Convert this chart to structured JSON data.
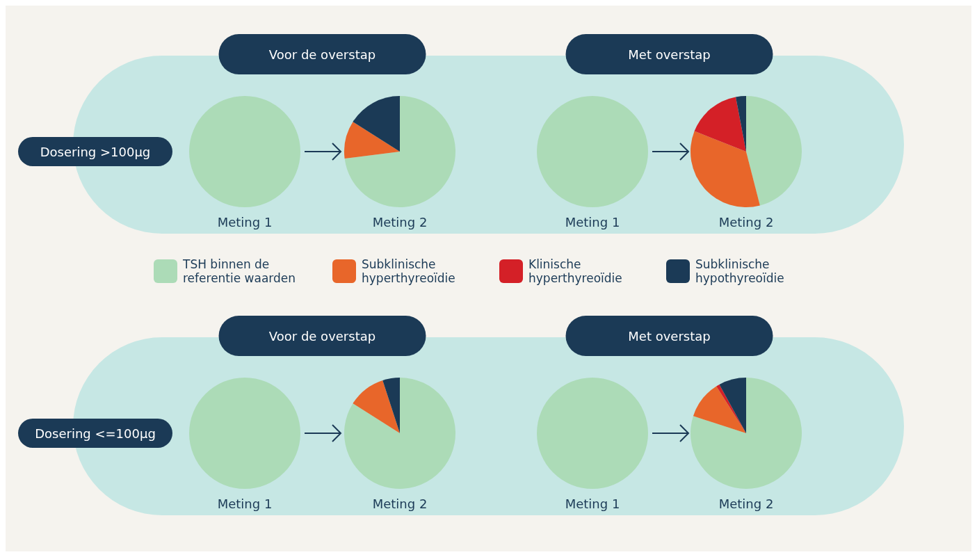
{
  "chart_data": [
    {
      "type": "pie",
      "title": "Meting 1",
      "categories": [
        null
      ],
      "values": [
        100
      ],
      "colors": [
        "#acdbb7"
      ],
      "annotations": [
        "Dosering >100μg",
        "Voor de overstap"
      ]
    },
    {
      "type": "pie",
      "title": "Meting 2",
      "categories": [
        null,
        null,
        null
      ],
      "values": [
        73,
        11,
        16
      ],
      "colors": [
        "#acdbb7",
        "#e8662a",
        "#1b3a56"
      ]
    },
    {
      "type": "pie",
      "title": "Meting 1",
      "categories": [
        null
      ],
      "values": [
        100
      ],
      "colors": [
        "#acdbb7"
      ],
      "annotations": [
        "Met overstap"
      ]
    },
    {
      "type": "pie",
      "title": "Meting 2",
      "categories": [
        "TSH binnen de referentie waarden",
        "Subklinische hyperthyreoïdie",
        "Klinische hyperthyreoïdie",
        "Subklinische hypothyreoïdie"
      ],
      "values": [
        46,
        35,
        16,
        3
      ],
      "colors": [
        "#acdbb7",
        "#e8662a",
        "#d42027",
        "#1b3a56"
      ],
      "legend": "bottom"
    },
    {
      "type": "pie",
      "title": "Meting 1",
      "categories": [
        null
      ],
      "values": [
        100
      ],
      "colors": [
        "#acdbb7"
      ],
      "annotations": [
        "Dosering <=100μg",
        "Voor de overstap"
      ]
    },
    {
      "type": "pie",
      "title": "Meting 2",
      "categories": [
        null,
        null,
        null
      ],
      "values": [
        84,
        11,
        5
      ],
      "colors": [
        "#acdbb7",
        "#e8662a",
        "#1b3a56"
      ]
    },
    {
      "type": "pie",
      "title": "Meting 1",
      "categories": [
        null
      ],
      "values": [
        100
      ],
      "colors": [
        "#acdbb7"
      ],
      "annotations": [
        "Met overstap"
      ]
    },
    {
      "type": "pie",
      "title": "Meting 2",
      "categories": [
        null,
        null,
        null,
        null
      ],
      "values": [
        80,
        11,
        1,
        8
      ],
      "colors": [
        "#acdbb7",
        "#e8662a",
        "#d42027",
        "#1b3a56"
      ]
    }
  ]
}
